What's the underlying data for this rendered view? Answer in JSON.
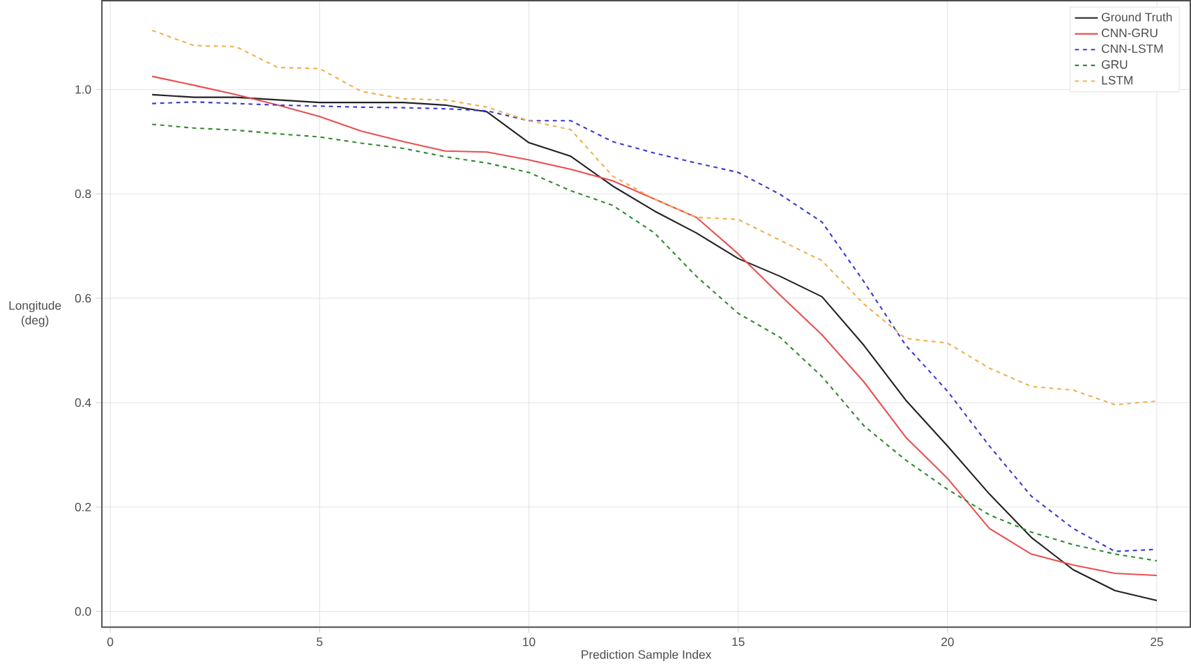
{
  "chart_data": {
    "type": "line",
    "xlabel": "Prediction Sample Index",
    "ylabel": "Longitude (deg)",
    "x": [
      1,
      2,
      3,
      4,
      5,
      6,
      7,
      8,
      9,
      10,
      11,
      12,
      13,
      14,
      15,
      16,
      17,
      18,
      19,
      20,
      21,
      22,
      23,
      24,
      25
    ],
    "xlim": [
      -0.2,
      25.8
    ],
    "ylim": [
      -0.03,
      1.17
    ],
    "xticks": [
      0,
      5,
      10,
      15,
      20,
      25
    ],
    "yticks": [
      {
        "value": 0,
        "label": "0.0"
      },
      {
        "value": 0.2,
        "label": "0.2"
      },
      {
        "value": 0.4,
        "label": "0.4"
      },
      {
        "value": 0.6,
        "label": "0.6"
      },
      {
        "value": 0.8,
        "label": "0.8"
      },
      {
        "value": 1,
        "label": "1.0"
      }
    ],
    "grid": true,
    "legend": "top right",
    "marker": "none",
    "series": [
      {
        "name": "Ground Truth",
        "color": "#222222",
        "line_style": "solid",
        "values": [
          0.99,
          0.985,
          0.985,
          0.98,
          0.975,
          0.975,
          0.975,
          0.97,
          0.957,
          0.898,
          0.872,
          0.815,
          0.767,
          0.725,
          0.676,
          0.642,
          0.603,
          0.51,
          0.405,
          0.317,
          0.225,
          0.142,
          0.08,
          0.04,
          0.021
        ]
      },
      {
        "name": "CNN-GRU",
        "color": "#e8504f",
        "line_style": "solid",
        "values": [
          1.025,
          1.008,
          0.99,
          0.97,
          0.948,
          0.92,
          0.9,
          0.882,
          0.88,
          0.865,
          0.847,
          0.825,
          0.79,
          0.755,
          0.685,
          0.606,
          0.53,
          0.44,
          0.334,
          0.255,
          0.159,
          0.11,
          0.089,
          0.073,
          0.069
        ]
      },
      {
        "name": "CNN-LSTM",
        "color": "#3a3ad0",
        "line_style": "dashed",
        "values": [
          0.973,
          0.976,
          0.973,
          0.97,
          0.968,
          0.966,
          0.965,
          0.963,
          0.959,
          0.94,
          0.94,
          0.9,
          0.878,
          0.859,
          0.841,
          0.799,
          0.746,
          0.632,
          0.51,
          0.422,
          0.317,
          0.221,
          0.159,
          0.115,
          0.119
        ]
      },
      {
        "name": "GRU",
        "color": "#2e8b2e",
        "line_style": "dashed",
        "values": [
          0.933,
          0.926,
          0.922,
          0.915,
          0.909,
          0.897,
          0.887,
          0.871,
          0.859,
          0.841,
          0.806,
          0.778,
          0.725,
          0.642,
          0.571,
          0.525,
          0.45,
          0.356,
          0.29,
          0.234,
          0.185,
          0.152,
          0.128,
          0.11,
          0.097
        ]
      },
      {
        "name": "LSTM",
        "color": "#f0b050",
        "line_style": "dashed",
        "values": [
          1.113,
          1.084,
          1.082,
          1.042,
          1.04,
          0.996,
          0.982,
          0.98,
          0.966,
          0.94,
          0.923,
          0.834,
          0.79,
          0.755,
          0.751,
          0.711,
          0.672,
          0.589,
          0.523,
          0.514,
          0.466,
          0.431,
          0.424,
          0.396,
          0.403
        ]
      }
    ]
  }
}
